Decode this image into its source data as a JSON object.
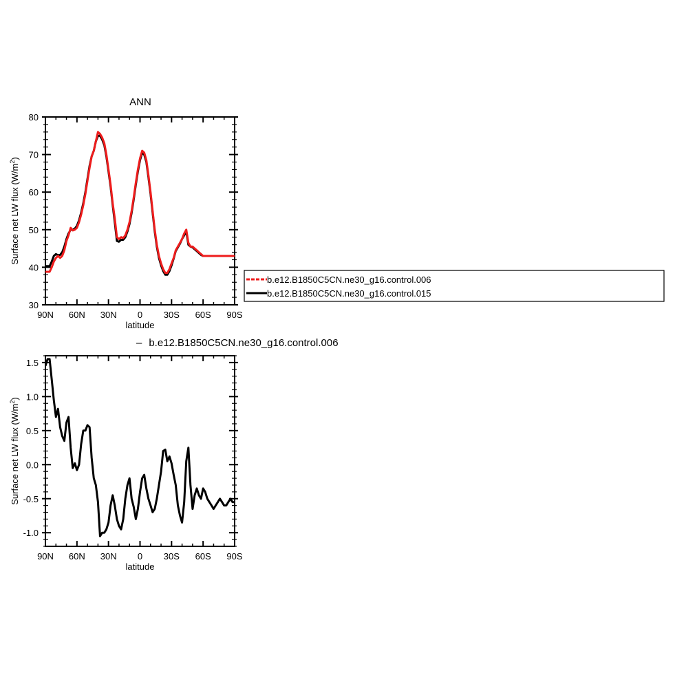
{
  "chart_data": [
    {
      "type": "line",
      "title": "ANN",
      "xlabel": "latitude",
      "ylabel": "Surface net LW flux (W/m",
      "ylabel_sup": "2",
      "ylabel_close": ")",
      "xlim": [
        90,
        -90
      ],
      "ylim": [
        30,
        80
      ],
      "x_ticks": [
        90,
        60,
        30,
        0,
        -30,
        -60,
        -90
      ],
      "x_tick_labels": [
        "90N",
        "60N",
        "30N",
        "0",
        "30S",
        "60S",
        "90S"
      ],
      "y_ticks": [
        30,
        40,
        50,
        60,
        70,
        80
      ],
      "y_tick_labels": [
        "30",
        "40",
        "50",
        "60",
        "70",
        "80"
      ],
      "grid": false,
      "legend_position": "right",
      "series": [
        {
          "name": "b.e12.B1850C5CN.ne30_g16.control.006",
          "color": "#ee1c1c",
          "x": [
            90,
            86,
            84,
            82,
            80,
            78,
            76,
            74,
            72,
            70,
            68,
            66,
            64,
            62,
            60,
            58,
            56,
            54,
            52,
            50,
            48,
            46,
            44,
            42,
            40,
            38,
            36,
            34,
            32,
            30,
            28,
            26,
            24,
            22,
            20,
            18,
            16,
            14,
            12,
            10,
            8,
            6,
            4,
            2,
            0,
            -2,
            -4,
            -6,
            -8,
            -10,
            -12,
            -14,
            -16,
            -18,
            -20,
            -22,
            -24,
            -26,
            -28,
            -30,
            -32,
            -34,
            -36,
            -38,
            -40,
            -42,
            -44,
            -46,
            -48,
            -50,
            -52,
            -54,
            -56,
            -58,
            -60,
            -62,
            -64,
            -66,
            -68,
            -70,
            -72,
            -74,
            -76,
            -78,
            -80,
            -82,
            -84,
            -86,
            -88,
            -90
          ],
          "values": [
            38.8,
            38.8,
            40.0,
            41.5,
            42.5,
            43.0,
            42.5,
            43.0,
            44.5,
            47.0,
            48.5,
            50.5,
            49.8,
            50.0,
            50.5,
            52.0,
            54.0,
            56.5,
            59.5,
            63.0,
            66.5,
            69.5,
            71.0,
            73.5,
            76.0,
            75.5,
            74.5,
            73.0,
            70.0,
            66.0,
            62.0,
            57.0,
            53.0,
            48.0,
            47.5,
            48.0,
            47.8,
            48.5,
            50.0,
            52.0,
            55.0,
            58.5,
            62.5,
            66.0,
            69.0,
            71.0,
            70.5,
            68.5,
            64.5,
            60.0,
            55.0,
            50.0,
            46.0,
            43.0,
            41.0,
            39.5,
            38.5,
            38.5,
            39.5,
            41.0,
            42.5,
            44.5,
            45.5,
            46.5,
            47.5,
            49.0,
            50.0,
            46.5,
            45.5,
            45.5,
            45.0,
            44.5,
            44.0,
            43.5,
            43.0,
            43.0,
            43.0,
            43.0,
            43.0,
            43.0,
            43.0,
            43.0,
            43.0,
            43.0,
            43.0,
            43.0,
            43.0,
            43.0,
            43.0,
            43.0
          ]
        },
        {
          "name": "b.e12.B1850C5CN.ne30_g16.control.015",
          "color": "#000000",
          "x": [
            90,
            86,
            84,
            82,
            80,
            78,
            76,
            74,
            72,
            70,
            68,
            66,
            64,
            62,
            60,
            58,
            56,
            54,
            52,
            50,
            48,
            46,
            44,
            42,
            40,
            38,
            36,
            34,
            32,
            30,
            28,
            26,
            24,
            22,
            20,
            18,
            16,
            14,
            12,
            10,
            8,
            6,
            4,
            2,
            0,
            -2,
            -4,
            -6,
            -8,
            -10,
            -12,
            -14,
            -16,
            -18,
            -20,
            -22,
            -24,
            -26,
            -28,
            -30,
            -32,
            -34,
            -36,
            -38,
            -40,
            -42,
            -44,
            -46,
            -48,
            -50,
            -52,
            -54,
            -56,
            -58,
            -60,
            -62,
            -64,
            -66,
            -68,
            -70,
            -72,
            -74,
            -76,
            -78,
            -80,
            -82,
            -84,
            -86,
            -88,
            -90
          ],
          "values": [
            40.3,
            40.3,
            41.5,
            43.0,
            43.5,
            43.2,
            43.3,
            44.0,
            45.5,
            47.5,
            49.0,
            50.0,
            50.0,
            50.3,
            51.0,
            52.5,
            54.5,
            57.0,
            60.0,
            63.5,
            67.0,
            69.5,
            71.0,
            73.5,
            75.0,
            75.0,
            74.0,
            72.5,
            69.5,
            65.5,
            61.5,
            56.5,
            52.0,
            47.0,
            46.8,
            47.3,
            47.3,
            48.0,
            49.5,
            51.5,
            54.5,
            58.0,
            62.0,
            65.5,
            68.5,
            70.5,
            70.0,
            68.0,
            64.0,
            59.5,
            54.5,
            49.5,
            45.5,
            42.5,
            40.5,
            39.0,
            38.0,
            38.0,
            39.0,
            40.5,
            42.3,
            44.3,
            45.3,
            46.3,
            47.5,
            48.5,
            49.5,
            46.0,
            45.5,
            45.3,
            44.8,
            44.3,
            43.8,
            43.3,
            43.0,
            43.0,
            43.0,
            43.0,
            43.0,
            43.0,
            43.0,
            43.0,
            43.0,
            43.0,
            43.0,
            43.0,
            43.0,
            43.0,
            43.0,
            43.0
          ]
        }
      ]
    },
    {
      "type": "line",
      "title": "b.e12.B1850C5CN.ne30_g16.control.006",
      "title_prefix": "–",
      "xlabel": "latitude",
      "ylabel": "Surface net LW flux (W/m",
      "ylabel_sup": "2",
      "ylabel_close": ")",
      "xlim": [
        90,
        -90
      ],
      "ylim": [
        -1.2,
        1.6
      ],
      "x_ticks": [
        90,
        60,
        30,
        0,
        -30,
        -60,
        -90
      ],
      "x_tick_labels": [
        "90N",
        "60N",
        "30N",
        "0",
        "30S",
        "60S",
        "90S"
      ],
      "y_ticks": [
        -1.0,
        -0.5,
        0.0,
        0.5,
        1.0,
        1.5
      ],
      "y_tick_labels": [
        "-1.0",
        "-0.5",
        "0.0",
        "0.5",
        "1.0",
        "1.5"
      ],
      "grid": false,
      "series": [
        {
          "color": "#000000",
          "x": [
            90,
            88,
            86,
            84,
            82,
            80,
            78,
            76,
            74,
            72,
            70,
            68,
            66,
            64,
            62,
            60,
            58,
            56,
            54,
            52,
            50,
            48,
            46,
            44,
            42,
            40,
            38,
            36,
            34,
            32,
            30,
            28,
            26,
            24,
            22,
            20,
            18,
            16,
            14,
            12,
            10,
            8,
            6,
            4,
            2,
            0,
            -2,
            -4,
            -6,
            -8,
            -10,
            -12,
            -14,
            -16,
            -18,
            -20,
            -22,
            -24,
            -26,
            -28,
            -30,
            -32,
            -34,
            -36,
            -38,
            -40,
            -42,
            -44,
            -46,
            -48,
            -50,
            -52,
            -54,
            -56,
            -58,
            -60,
            -62,
            -64,
            -66,
            -68,
            -70,
            -72,
            -74,
            -76,
            -78,
            -80,
            -82,
            -84,
            -86,
            -88,
            -90
          ],
          "values": [
            1.45,
            1.55,
            1.55,
            1.25,
            0.95,
            0.7,
            0.82,
            0.55,
            0.42,
            0.35,
            0.62,
            0.7,
            0.25,
            -0.05,
            0.02,
            -0.08,
            0.0,
            0.3,
            0.5,
            0.5,
            0.58,
            0.55,
            0.1,
            -0.2,
            -0.3,
            -0.55,
            -1.05,
            -1.0,
            -1.0,
            -0.95,
            -0.85,
            -0.6,
            -0.45,
            -0.6,
            -0.8,
            -0.9,
            -0.95,
            -0.8,
            -0.5,
            -0.3,
            -0.2,
            -0.5,
            -0.62,
            -0.8,
            -0.65,
            -0.4,
            -0.2,
            -0.15,
            -0.35,
            -0.5,
            -0.6,
            -0.7,
            -0.65,
            -0.5,
            -0.3,
            -0.1,
            0.2,
            0.22,
            0.05,
            0.12,
            0.02,
            -0.15,
            -0.3,
            -0.6,
            -0.75,
            -0.85,
            -0.55,
            0.05,
            0.25,
            -0.3,
            -0.65,
            -0.45,
            -0.35,
            -0.45,
            -0.5,
            -0.35,
            -0.4,
            -0.5,
            -0.55,
            -0.6,
            -0.65,
            -0.6,
            -0.55,
            -0.5,
            -0.55,
            -0.6,
            -0.6,
            -0.55,
            -0.5,
            -0.55,
            -0.55
          ]
        }
      ]
    }
  ]
}
